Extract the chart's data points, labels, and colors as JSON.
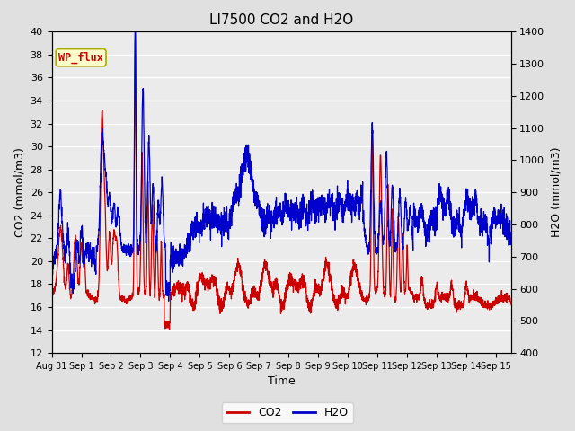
{
  "title": "LI7500 CO2 and H2O",
  "xlabel": "Time",
  "ylabel_left": "CO2 (mmol/m3)",
  "ylabel_right": "H2O (mmol/m3)",
  "ylim_left": [
    12,
    40
  ],
  "ylim_right": [
    400,
    1400
  ],
  "yticks_left": [
    12,
    14,
    16,
    18,
    20,
    22,
    24,
    26,
    28,
    30,
    32,
    34,
    36,
    38,
    40
  ],
  "yticks_right": [
    400,
    500,
    600,
    700,
    800,
    900,
    1000,
    1100,
    1200,
    1300,
    1400
  ],
  "xtick_labels": [
    "Aug 31",
    "Sep 1",
    "Sep 2",
    "Sep 3",
    "Sep 4",
    "Sep 5",
    "Sep 6",
    "Sep 7",
    "Sep 8",
    "Sep 9",
    "Sep 10",
    "Sep 11",
    "Sep 12",
    "Sep 13",
    "Sep 14",
    "Sep 15"
  ],
  "co2_color": "#cc0000",
  "h2o_color": "#0000cc",
  "fig_bg_color": "#e0e0e0",
  "plot_bg_color": "#ebebeb",
  "grid_color": "#ffffff",
  "annotation_text": "WP_flux",
  "annotation_color": "#cc0000",
  "annotation_bg": "#ffffcc",
  "annotation_border": "#aaaa00",
  "legend_co2": "CO2",
  "legend_h2o": "H2O",
  "title_fontsize": 11,
  "axis_fontsize": 9,
  "tick_fontsize": 8,
  "linewidth": 0.9
}
